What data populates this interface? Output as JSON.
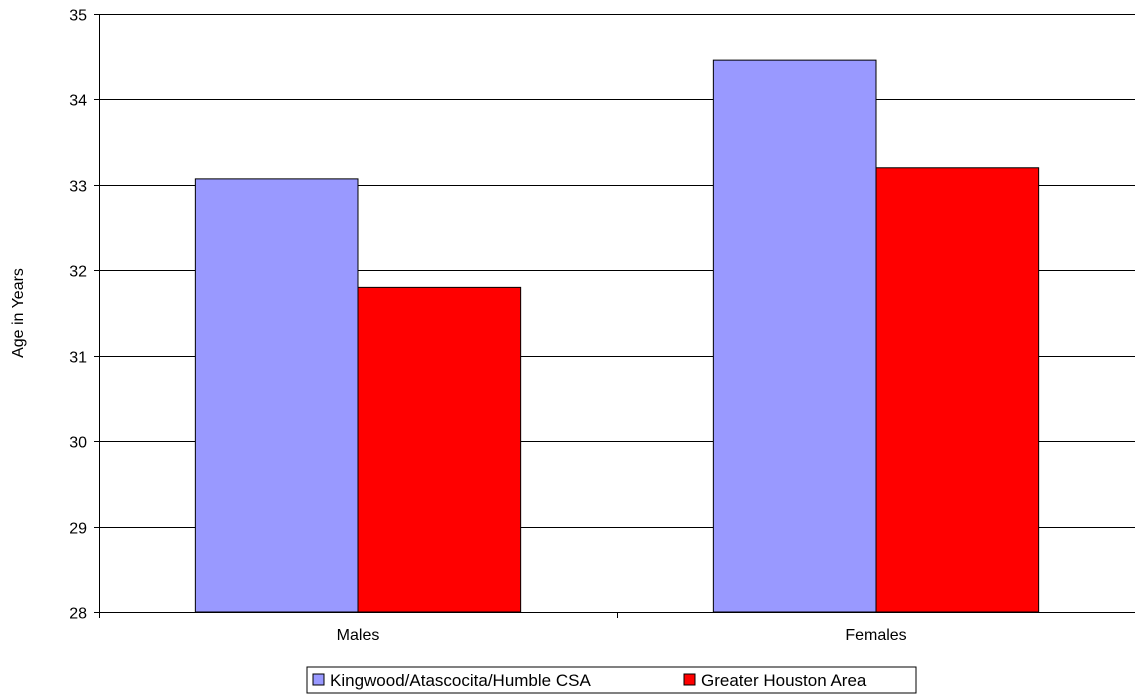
{
  "chart_data": {
    "type": "bar",
    "title": "",
    "xlabel": "",
    "ylabel": "Age in Years",
    "categories": [
      "Males",
      "Females"
    ],
    "series": [
      {
        "name": "Kingwood/Atascocita/Humble CSA",
        "values": [
          33.07,
          34.46
        ],
        "color": "#9999ff"
      },
      {
        "name": "Greater Houston Area",
        "values": [
          31.8,
          33.2
        ],
        "color": "#ff0000"
      }
    ],
    "ylim": [
      28,
      35
    ],
    "yticks": [
      "28",
      "29",
      "30",
      "31",
      "32",
      "33",
      "34",
      "35"
    ],
    "grid": true,
    "legend_position": "bottom"
  }
}
